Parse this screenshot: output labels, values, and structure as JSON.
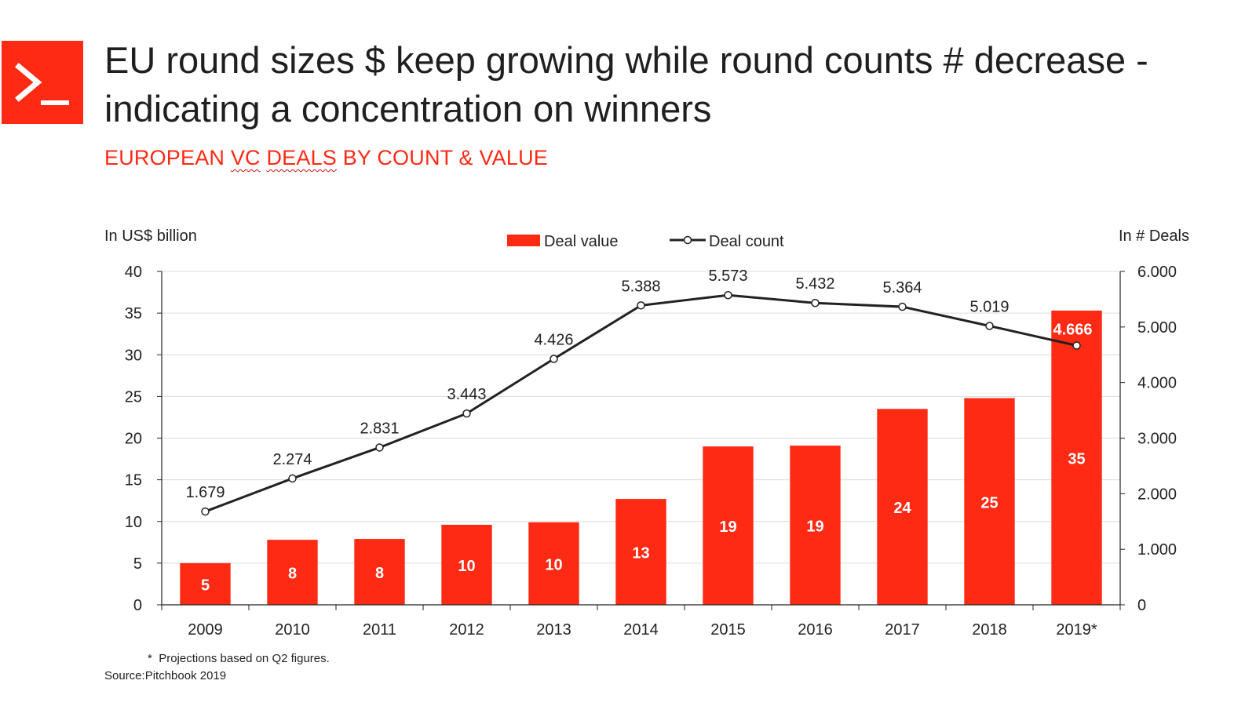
{
  "header": {
    "title_line1": "EU round sizes $ keep growing while round counts # decrease -",
    "title_line2": "indicating a concentration on winners",
    "subtitle_pre": "EUROPEAN ",
    "subtitle_sq1": "VC",
    "subtitle_sq2": "DEALS",
    "subtitle_post": " BY COUNT & VALUE",
    "logo_icon": "terminal-prompt-icon"
  },
  "colors": {
    "accent": "#ff2a14",
    "bar": "#ff2a14",
    "line": "#222222"
  },
  "chart_data": {
    "type": "bar",
    "categories": [
      "2009",
      "2010",
      "2011",
      "2012",
      "2013",
      "2014",
      "2015",
      "2016",
      "2017",
      "2018",
      "2019*"
    ],
    "series": [
      {
        "name": "Deal value",
        "type": "bar",
        "axis": "left",
        "values": [
          5,
          8,
          8,
          10,
          10,
          13,
          19,
          19,
          24,
          25,
          35
        ],
        "labels": [
          "5",
          "8",
          "8",
          "10",
          "10",
          "13",
          "19",
          "19",
          "24",
          "25",
          "35"
        ],
        "plotted_values": [
          5.0,
          7.8,
          7.9,
          9.6,
          9.9,
          12.7,
          19.0,
          19.1,
          23.5,
          24.8,
          35.3
        ]
      },
      {
        "name": "Deal count",
        "type": "line",
        "axis": "right",
        "values": [
          1679,
          2274,
          2831,
          3443,
          4426,
          5388,
          5573,
          5432,
          5364,
          5019,
          4666
        ],
        "labels": [
          "1.679",
          "2.274",
          "2.831",
          "3.443",
          "4.426",
          "5.388",
          "5.573",
          "5.432",
          "5.364",
          "5.019",
          "4.666"
        ]
      }
    ],
    "ylabel": "In US$ billion",
    "ylabel_right": "In # Deals",
    "ylim": [
      0,
      40
    ],
    "ylim_right": [
      0,
      6000
    ],
    "yticks": [
      "0",
      "5",
      "10",
      "15",
      "20",
      "25",
      "30",
      "35",
      "40"
    ],
    "yticks_right": [
      "0",
      "1.000",
      "2.000",
      "3.000",
      "4.000",
      "5.000",
      "6.000"
    ],
    "grid": true,
    "legend_position": "top-center"
  },
  "footer": {
    "footnote_mark": "*",
    "footnote": "Projections based on Q2 figures.",
    "source": "Source:Pitchbook 2019"
  }
}
